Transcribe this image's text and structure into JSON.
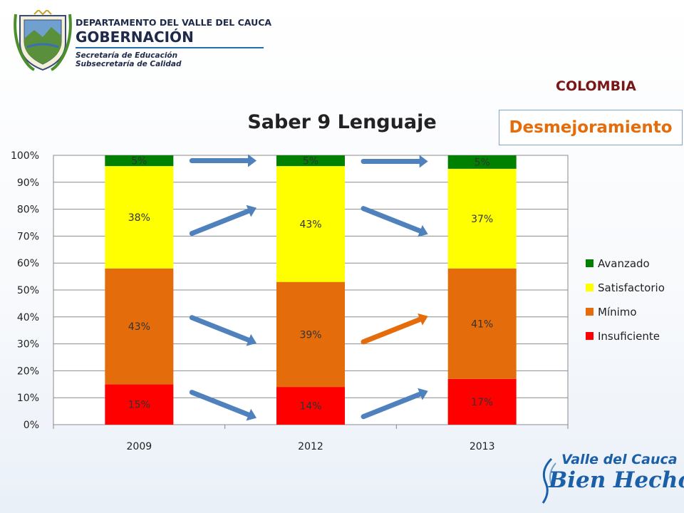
{
  "header": {
    "line1": "DEPARTAMENTO DEL VALLE DEL CAUCA",
    "line2": "GOBERNACIÓN",
    "line3": "Secretaría de Educación",
    "line4": "Subsecretaría de Calidad",
    "logo_icon": "coat-of-arms-icon"
  },
  "country": "COLOMBIA",
  "badge": "Desmejoramiento",
  "footer_logo": {
    "line1": "Valle del Cauca",
    "line2": "Bien Hecho!"
  },
  "colors": {
    "Avanzado": "#008000",
    "Satisfactorio": "#ffff00",
    "Minimo": "#e46c0a",
    "Insuficiente": "#ff0000",
    "arrow_blue": "#4f81bd",
    "arrow_orange": "#e46c0a",
    "badge_text": "#e46c0a",
    "country_text": "#7b1616"
  },
  "chart_data": {
    "type": "bar",
    "stacked": true,
    "title": "Saber 9 Lenguaje",
    "xlabel": "",
    "ylabel": "",
    "categories": [
      "2009",
      "2012",
      "2013"
    ],
    "ylim": [
      0,
      100
    ],
    "yticks": [
      "0%",
      "10%",
      "20%",
      "30%",
      "40%",
      "50%",
      "60%",
      "70%",
      "80%",
      "90%",
      "100%"
    ],
    "grid": true,
    "legend_position": "right",
    "series": [
      {
        "name": "Insuficiente",
        "values": [
          15,
          14,
          17
        ],
        "labels": [
          "15%",
          "14%",
          "17%"
        ]
      },
      {
        "name": "Mínimo",
        "values": [
          43,
          39,
          41
        ],
        "labels": [
          "43%",
          "39%",
          "41%"
        ]
      },
      {
        "name": "Satisfactorio",
        "values": [
          38,
          43,
          37
        ],
        "labels": [
          "38%",
          "43%",
          "37%"
        ]
      },
      {
        "name": "Avanzado",
        "values": [
          5,
          5,
          5
        ],
        "labels": [
          "5%",
          "5%",
          "5%"
        ]
      }
    ],
    "legend_order": [
      "Avanzado",
      "Satisfactorio",
      "Mínimo",
      "Insuficiente"
    ],
    "trend_arrows": [
      {
        "from": "2009",
        "to": "2012",
        "series": "Avanzado",
        "direction": "flat",
        "color": "arrow_blue"
      },
      {
        "from": "2009",
        "to": "2012",
        "series": "Satisfactorio",
        "direction": "up",
        "color": "arrow_blue"
      },
      {
        "from": "2009",
        "to": "2012",
        "series": "Mínimo",
        "direction": "down",
        "color": "arrow_blue"
      },
      {
        "from": "2009",
        "to": "2012",
        "series": "Insuficiente",
        "direction": "down",
        "color": "arrow_blue"
      },
      {
        "from": "2012",
        "to": "2013",
        "series": "Avanzado",
        "direction": "flat",
        "color": "arrow_blue"
      },
      {
        "from": "2012",
        "to": "2013",
        "series": "Satisfactorio",
        "direction": "down",
        "color": "arrow_blue"
      },
      {
        "from": "2012",
        "to": "2013",
        "series": "Mínimo",
        "direction": "up",
        "color": "arrow_orange"
      },
      {
        "from": "2012",
        "to": "2013",
        "series": "Insuficiente",
        "direction": "up",
        "color": "arrow_blue"
      }
    ]
  }
}
